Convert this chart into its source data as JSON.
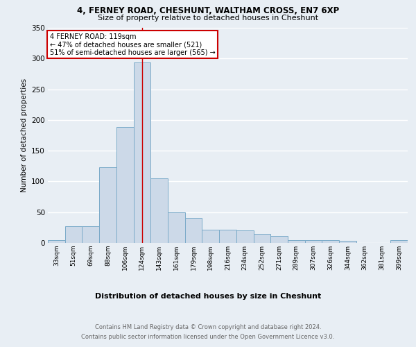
{
  "title1": "4, FERNEY ROAD, CHESHUNT, WALTHAM CROSS, EN7 6XP",
  "title2": "Size of property relative to detached houses in Cheshunt",
  "xlabel": "Distribution of detached houses by size in Cheshunt",
  "ylabel": "Number of detached properties",
  "categories": [
    "33sqm",
    "51sqm",
    "69sqm",
    "88sqm",
    "106sqm",
    "124sqm",
    "143sqm",
    "161sqm",
    "179sqm",
    "198sqm",
    "216sqm",
    "234sqm",
    "252sqm",
    "271sqm",
    "289sqm",
    "307sqm",
    "326sqm",
    "344sqm",
    "362sqm",
    "381sqm",
    "399sqm"
  ],
  "values": [
    4,
    27,
    27,
    123,
    188,
    293,
    105,
    50,
    41,
    22,
    21,
    20,
    15,
    11,
    4,
    4,
    4,
    3,
    0,
    0,
    4
  ],
  "bar_color": "#ccd9e8",
  "bar_edge_color": "#7aaac8",
  "marker_x": "124sqm",
  "annotation_line0": "4 FERNEY ROAD: 119sqm",
  "annotation_line1": "← 47% of detached houses are smaller (521)",
  "annotation_line2": "51% of semi-detached houses are larger (565) →",
  "vline_color": "#cc0000",
  "annotation_box_facecolor": "#ffffff",
  "annotation_box_edgecolor": "#cc0000",
  "footer1": "Contains HM Land Registry data © Crown copyright and database right 2024.",
  "footer2": "Contains public sector information licensed under the Open Government Licence v3.0.",
  "ylim": [
    0,
    350
  ],
  "background_color": "#e8eef4",
  "plot_background": "#e8eef4"
}
